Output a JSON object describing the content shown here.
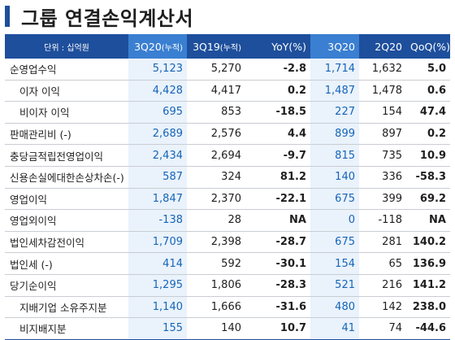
{
  "title": "그룹 연결손익계산서",
  "header": {
    "unit": "단위 : 십억원",
    "cols": [
      "3Q20",
      "(누적)",
      "3Q19",
      "(누적)",
      "YoY(%)",
      "3Q20",
      "2Q20",
      "QoQ(%)"
    ]
  },
  "rows": [
    {
      "label": "순영업수익",
      "indent": false,
      "v": [
        "5,123",
        "5,270",
        "-2.8",
        "1,714",
        "1,632",
        "5.0"
      ]
    },
    {
      "label": "이자 이익",
      "indent": true,
      "v": [
        "4,428",
        "4,417",
        "0.2",
        "1,487",
        "1,478",
        "0.6"
      ]
    },
    {
      "label": "비이자 이익",
      "indent": true,
      "v": [
        "695",
        "853",
        "-18.5",
        "227",
        "154",
        "47.4"
      ]
    },
    {
      "label": "판매관리비 (-)",
      "indent": false,
      "v": [
        "2,689",
        "2,576",
        "4.4",
        "899",
        "897",
        "0.2"
      ]
    },
    {
      "label": "충당금적립전영업이익",
      "indent": false,
      "v": [
        "2,434",
        "2,694",
        "-9.7",
        "815",
        "735",
        "10.9"
      ]
    },
    {
      "label": "신용손실에대한손상차손(-)",
      "indent": false,
      "v": [
        "587",
        "324",
        "81.2",
        "140",
        "336",
        "-58.3"
      ]
    },
    {
      "label": "영업이익",
      "indent": false,
      "v": [
        "1,847",
        "2,370",
        "-22.1",
        "675",
        "399",
        "69.2"
      ]
    },
    {
      "label": "영업외이익",
      "indent": false,
      "v": [
        "-138",
        "28",
        "NA",
        "0",
        "-118",
        "NA"
      ]
    },
    {
      "label": "법인세차감전이익",
      "indent": false,
      "v": [
        "1,709",
        "2,398",
        "-28.7",
        "675",
        "281",
        "140.2"
      ]
    },
    {
      "label": "법인세 (-)",
      "indent": false,
      "v": [
        "414",
        "592",
        "-30.1",
        "154",
        "65",
        "136.9"
      ]
    },
    {
      "label": "당기순이익",
      "indent": false,
      "v": [
        "1,295",
        "1,806",
        "-28.3",
        "521",
        "216",
        "141.2"
      ]
    },
    {
      "label": "지배기업 소유주지분",
      "indent": true,
      "v": [
        "1,140",
        "1,666",
        "-31.6",
        "480",
        "142",
        "238.0"
      ]
    },
    {
      "label": "비지배지분",
      "indent": true,
      "v": [
        "155",
        "140",
        "10.7",
        "41",
        "74",
        "-44.6"
      ]
    }
  ]
}
